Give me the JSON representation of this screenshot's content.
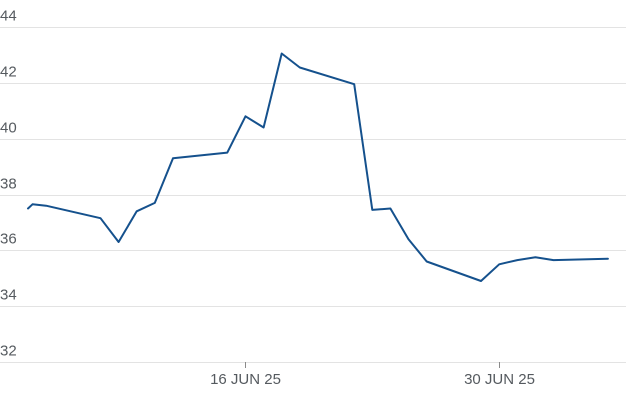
{
  "chart_data": {
    "type": "line",
    "title": "",
    "xlabel": "",
    "ylabel": "",
    "ylim": [
      32,
      44
    ],
    "xlim": [
      "2025-06-04",
      "2025-07-07"
    ],
    "grid": true,
    "y_ticks": [
      "32",
      "34",
      "36",
      "38",
      "40",
      "42",
      "44"
    ],
    "x_ticks": [
      {
        "date": "2025-06-16",
        "label": "16 JUN 25"
      },
      {
        "date": "2025-06-30",
        "label": "30 JUN 25"
      }
    ],
    "series": [
      {
        "color": "#15518d",
        "points": [
          {
            "x": "2025-06-04",
            "y": 37.5
          },
          {
            "x": "2025-06-04T06:00",
            "y": 37.65
          },
          {
            "x": "2025-06-05",
            "y": 37.6
          },
          {
            "x": "2025-06-08",
            "y": 37.15
          },
          {
            "x": "2025-06-09",
            "y": 36.3
          },
          {
            "x": "2025-06-10",
            "y": 37.4
          },
          {
            "x": "2025-06-11",
            "y": 37.7
          },
          {
            "x": "2025-06-12",
            "y": 39.3
          },
          {
            "x": "2025-06-15",
            "y": 39.5
          },
          {
            "x": "2025-06-16",
            "y": 40.8
          },
          {
            "x": "2025-06-17",
            "y": 40.4
          },
          {
            "x": "2025-06-18",
            "y": 43.05
          },
          {
            "x": "2025-06-19",
            "y": 42.55
          },
          {
            "x": "2025-06-22",
            "y": 41.95
          },
          {
            "x": "2025-06-23",
            "y": 37.45
          },
          {
            "x": "2025-06-24",
            "y": 37.5
          },
          {
            "x": "2025-06-25",
            "y": 36.4
          },
          {
            "x": "2025-06-26",
            "y": 35.6
          },
          {
            "x": "2025-06-29",
            "y": 34.9
          },
          {
            "x": "2025-06-30",
            "y": 35.5
          },
          {
            "x": "2025-07-01",
            "y": 35.65
          },
          {
            "x": "2025-07-02",
            "y": 35.75
          },
          {
            "x": "2025-07-03",
            "y": 35.65
          },
          {
            "x": "2025-07-06",
            "y": 35.7
          }
        ]
      }
    ]
  }
}
